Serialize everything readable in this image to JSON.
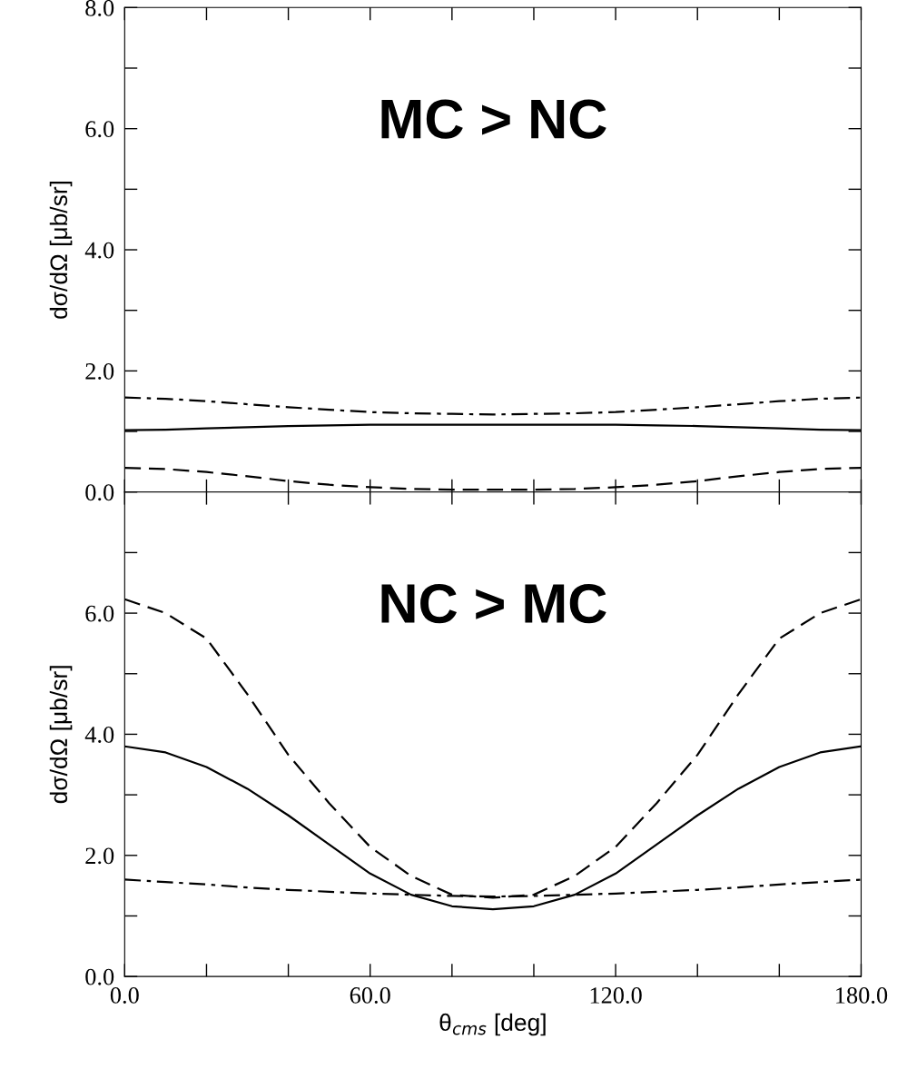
{
  "chart_data": [
    {
      "type": "line",
      "ylabel": "dσ/dΩ [μb/sr]",
      "annotations": [
        "MC > NC"
      ],
      "tick_labels": "y",
      "x": [
        0,
        10,
        20,
        30,
        40,
        50,
        60,
        70,
        80,
        90,
        100,
        110,
        120,
        130,
        140,
        150,
        160,
        170,
        180
      ],
      "xlim": [
        0,
        180
      ],
      "xticks": [
        {
          "value": 0,
          "label": null
        },
        {
          "value": 20,
          "label": null
        },
        {
          "value": 40,
          "label": null
        },
        {
          "value": 60,
          "label": null
        },
        {
          "value": 80,
          "label": null
        },
        {
          "value": 100,
          "label": null
        },
        {
          "value": 120,
          "label": null
        },
        {
          "value": 140,
          "label": null
        },
        {
          "value": 160,
          "label": null
        },
        {
          "value": 180,
          "label": null
        }
      ],
      "ylim": [
        0,
        8
      ],
      "yticks": [
        {
          "value": 0,
          "label": "0.0"
        },
        {
          "value": 1,
          "label": null
        },
        {
          "value": 2,
          "label": "2.0"
        },
        {
          "value": 3,
          "label": null
        },
        {
          "value": 4,
          "label": "4.0"
        },
        {
          "value": 5,
          "label": null
        },
        {
          "value": 6,
          "label": "6.0"
        },
        {
          "value": 7,
          "label": null
        },
        {
          "value": 8,
          "label": "8.0"
        }
      ],
      "grid": false,
      "legend": false,
      "marker": "none",
      "series": [
        {
          "color": "#000000",
          "line_style": "dashdot",
          "values": [
            1.56,
            1.54,
            1.5,
            1.45,
            1.4,
            1.36,
            1.32,
            1.3,
            1.29,
            1.28,
            1.29,
            1.3,
            1.32,
            1.36,
            1.4,
            1.45,
            1.5,
            1.54,
            1.56
          ]
        },
        {
          "color": "#000000",
          "line_style": "solid",
          "values": [
            1.02,
            1.03,
            1.05,
            1.07,
            1.09,
            1.1,
            1.11,
            1.11,
            1.11,
            1.11,
            1.11,
            1.11,
            1.11,
            1.1,
            1.09,
            1.07,
            1.05,
            1.03,
            1.02
          ]
        },
        {
          "color": "#000000",
          "line_style": "dashed",
          "values": [
            0.4,
            0.38,
            0.33,
            0.26,
            0.18,
            0.12,
            0.08,
            0.05,
            0.04,
            0.04,
            0.04,
            0.05,
            0.08,
            0.12,
            0.18,
            0.26,
            0.33,
            0.38,
            0.4
          ]
        }
      ]
    },
    {
      "type": "line",
      "ylabel": "dσ/dΩ [μb/sr]",
      "xlabel": "θ$_{cms}$ [deg]",
      "annotations": [
        "NC > MC"
      ],
      "x": [
        0,
        10,
        20,
        30,
        40,
        50,
        60,
        70,
        80,
        90,
        100,
        110,
        120,
        130,
        140,
        150,
        160,
        170,
        180
      ],
      "xlim": [
        0,
        180
      ],
      "xticks": [
        {
          "value": 0,
          "label": "0.0"
        },
        {
          "value": 20,
          "label": null
        },
        {
          "value": 40,
          "label": null
        },
        {
          "value": 60,
          "label": "60.0"
        },
        {
          "value": 80,
          "label": null
        },
        {
          "value": 100,
          "label": null
        },
        {
          "value": 120,
          "label": "120.0"
        },
        {
          "value": 140,
          "label": null
        },
        {
          "value": 160,
          "label": null
        },
        {
          "value": 180,
          "label": "180.0"
        }
      ],
      "ylim": [
        0,
        8
      ],
      "yticks": [
        {
          "value": 0,
          "label": "0.0"
        },
        {
          "value": 1,
          "label": null
        },
        {
          "value": 2,
          "label": "2.0"
        },
        {
          "value": 3,
          "label": null
        },
        {
          "value": 4,
          "label": "4.0"
        },
        {
          "value": 5,
          "label": null
        },
        {
          "value": 6,
          "label": "6.0"
        },
        {
          "value": 7,
          "label": null
        },
        {
          "value": 8,
          "label": null
        }
      ],
      "grid": false,
      "legend": false,
      "marker": "none",
      "series": [
        {
          "color": "#000000",
          "line_style": "dashed",
          "values": [
            6.23,
            6.0,
            5.58,
            4.66,
            3.66,
            2.86,
            2.14,
            1.66,
            1.35,
            1.3,
            1.35,
            1.66,
            2.14,
            2.86,
            3.66,
            4.66,
            5.58,
            6.0,
            6.23
          ]
        },
        {
          "color": "#000000",
          "line_style": "solid",
          "values": [
            3.8,
            3.7,
            3.46,
            3.1,
            2.66,
            2.18,
            1.7,
            1.35,
            1.16,
            1.11,
            1.16,
            1.35,
            1.7,
            2.18,
            2.66,
            3.1,
            3.46,
            3.7,
            3.8
          ]
        },
        {
          "color": "#000000",
          "line_style": "dashdot",
          "values": [
            1.6,
            1.56,
            1.52,
            1.47,
            1.43,
            1.4,
            1.37,
            1.35,
            1.33,
            1.32,
            1.33,
            1.35,
            1.37,
            1.4,
            1.43,
            1.47,
            1.52,
            1.56,
            1.6
          ]
        }
      ]
    }
  ]
}
